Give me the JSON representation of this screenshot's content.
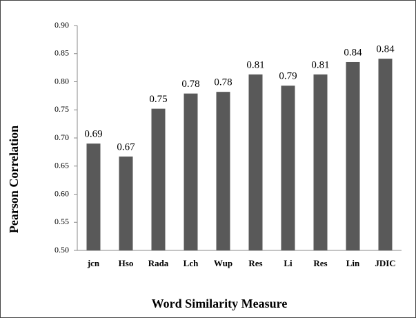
{
  "chart_data": {
    "type": "bar",
    "x_label": "Word Similarity Measure",
    "y_label": "Pearson Correlation",
    "categories": [
      "jcn",
      "Hso",
      "Rada",
      "Lch",
      "Wup",
      "Res",
      "Li",
      "Res",
      "Lin",
      "JDIC"
    ],
    "values": [
      0.69,
      0.667,
      0.752,
      0.779,
      0.782,
      0.813,
      0.793,
      0.813,
      0.835,
      0.841
    ],
    "value_labels": [
      "0.69",
      "0.67",
      "0.75",
      "0.78",
      "0.78",
      "0.81",
      "0.79",
      "0.81",
      "0.84",
      "0.84"
    ],
    "color": "#595959",
    "ylim": [
      0.5,
      0.9
    ],
    "yticks": [
      {
        "value": 0.5,
        "label": "0.50"
      },
      0.55,
      {
        "value": 0.6,
        "label": "0.60"
      },
      0.65,
      {
        "value": 0.7,
        "label": "0.70"
      },
      0.75,
      {
        "value": 0.8,
        "label": "0.80"
      },
      0.85,
      {
        "value": 0.9,
        "label": "0.90"
      }
    ],
    "grid": false
  }
}
